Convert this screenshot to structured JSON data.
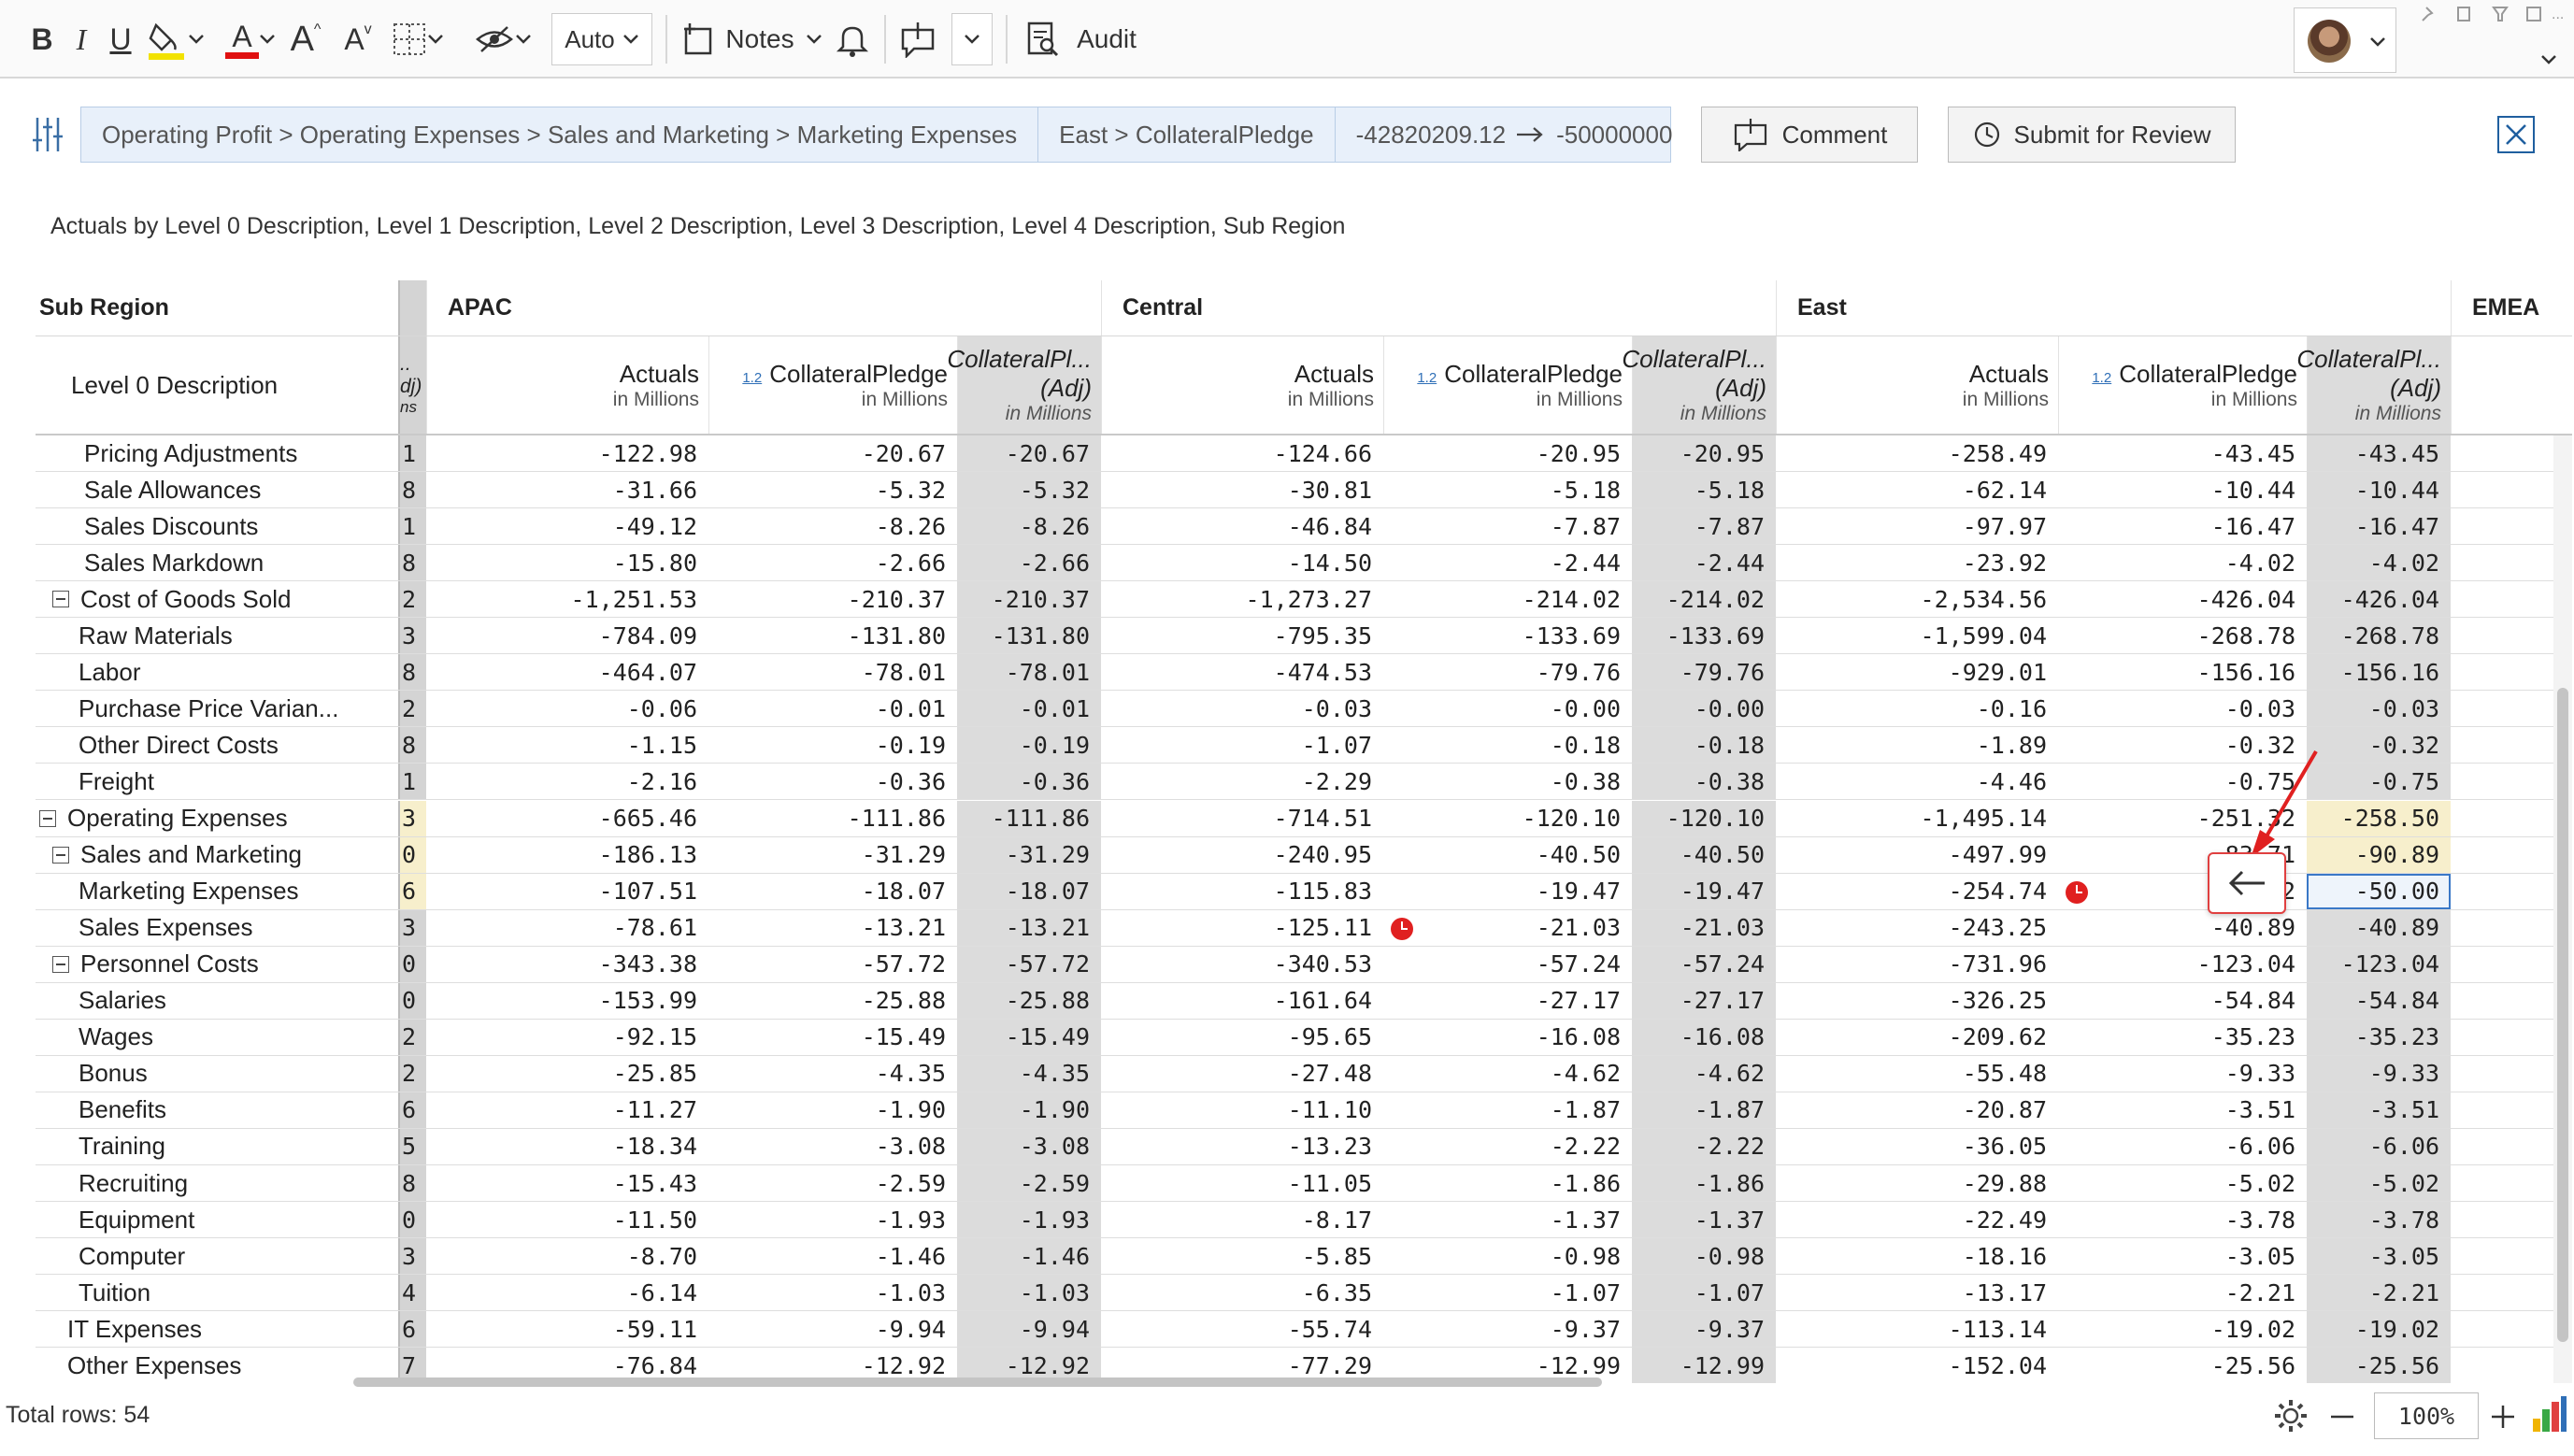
{
  "toolbar": {
    "auto_label": "Auto",
    "notes_label": "Notes",
    "audit_label": "Audit",
    "bold": "B",
    "italic": "I",
    "underline": "U",
    "font_color_letter": "A",
    "grow_letter": "A",
    "shrink_letter": "A"
  },
  "context": {
    "breadcrumb": "Operating Profit > Operating Expenses > Sales and Marketing > Marketing Expenses",
    "cell_path": "East > CollateralPledge",
    "old_value": "-42820209.12",
    "new_value": "-50000000",
    "comment_label": "Comment",
    "submit_label": "Submit for Review"
  },
  "grid_title": "Actuals by Level 0 Description, Level 1 Description, Level 2 Description, Level 3 Description, Level 4 Description, Sub Region",
  "header": {
    "sub_region_label": "Sub Region",
    "level_label": "Level 0 Description",
    "regions": [
      "APAC",
      "Central",
      "East",
      "EMEA"
    ],
    "measures": {
      "actuals": "Actuals",
      "collateral": "CollateralPledge",
      "adj_top": "CollateralPl...",
      "adj_bottom": "(Adj)",
      "unit": "in Millions",
      "badge": "1.2",
      "stub_top": "..",
      "stub_mid": "dj)",
      "stub_unit": "ns"
    }
  },
  "rows": [
    {
      "label": "Pricing Adjustments",
      "indent": 3,
      "bold": false,
      "stub": "1",
      "v": [
        "-122.98",
        "-20.67",
        "-20.67",
        "-124.66",
        "-20.95",
        "-20.95",
        "-258.49",
        "-43.45",
        "-43.45"
      ]
    },
    {
      "label": "Sale Allowances",
      "indent": 3,
      "bold": false,
      "stub": "8",
      "v": [
        "-31.66",
        "-5.32",
        "-5.32",
        "-30.81",
        "-5.18",
        "-5.18",
        "-62.14",
        "-10.44",
        "-10.44"
      ]
    },
    {
      "label": "Sales Discounts",
      "indent": 3,
      "bold": false,
      "stub": "1",
      "v": [
        "-49.12",
        "-8.26",
        "-8.26",
        "-46.84",
        "-7.87",
        "-7.87",
        "-97.97",
        "-16.47",
        "-16.47"
      ]
    },
    {
      "label": "Sales Markdown",
      "indent": 3,
      "bold": false,
      "stub": "8",
      "v": [
        "-15.80",
        "-2.66",
        "-2.66",
        "-14.50",
        "-2.44",
        "-2.44",
        "-23.92",
        "-4.02",
        "-4.02"
      ]
    },
    {
      "label": "Cost of Goods Sold",
      "indent": 2,
      "bold": false,
      "expand": true,
      "stub": "2",
      "v": [
        "-1,251.53",
        "-210.37",
        "-210.37",
        "-1,273.27",
        "-214.02",
        "-214.02",
        "-2,534.56",
        "-426.04",
        "-426.04"
      ]
    },
    {
      "label": "Raw Materials",
      "indent": 3,
      "bold": false,
      "stub": "3",
      "v": [
        "-784.09",
        "-131.80",
        "-131.80",
        "-795.35",
        "-133.69",
        "-133.69",
        "-1,599.04",
        "-268.78",
        "-268.78"
      ]
    },
    {
      "label": "Labor",
      "indent": 3,
      "bold": false,
      "stub": "8",
      "v": [
        "-464.07",
        "-78.01",
        "-78.01",
        "-474.53",
        "-79.76",
        "-79.76",
        "-929.01",
        "-156.16",
        "-156.16"
      ]
    },
    {
      "label": "Purchase Price Varian...",
      "indent": 3,
      "bold": false,
      "stub": "2",
      "v": [
        "-0.06",
        "-0.01",
        "-0.01",
        "-0.03",
        "-0.00",
        "-0.00",
        "-0.16",
        "-0.03",
        "-0.03"
      ]
    },
    {
      "label": "Other Direct Costs",
      "indent": 3,
      "bold": false,
      "stub": "8",
      "v": [
        "-1.15",
        "-0.19",
        "-0.19",
        "-1.07",
        "-0.18",
        "-0.18",
        "-1.89",
        "-0.32",
        "-0.32"
      ]
    },
    {
      "label": "Freight",
      "indent": 3,
      "bold": false,
      "stub": "1",
      "v": [
        "-2.16",
        "-0.36",
        "-0.36",
        "-2.29",
        "-0.38",
        "-0.38",
        "-4.46",
        "-0.75",
        "-0.75"
      ]
    },
    {
      "label": "Operating Expenses",
      "indent": 1,
      "bold": false,
      "expand": true,
      "stub": "3",
      "stub_yellow": true,
      "adj_yellow": true,
      "v": [
        "-665.46",
        "-111.86",
        "-111.86",
        "-714.51",
        "-120.10",
        "-120.10",
        "-1,495.14",
        "-251.32",
        "-258.50"
      ]
    },
    {
      "label": "Sales and Marketing",
      "indent": 2,
      "bold": false,
      "expand": true,
      "stub": "0",
      "stub_yellow": true,
      "adj_yellow": true,
      "v": [
        "-186.13",
        "-31.29",
        "-31.29",
        "-240.95",
        "-40.50",
        "-40.50",
        "-497.99",
        "-83.71",
        "-90.89"
      ]
    },
    {
      "label": "Marketing Expenses",
      "indent": 3,
      "bold": false,
      "stub": "6",
      "stub_yellow": true,
      "selected": true,
      "clock_east": true,
      "v": [
        "-107.51",
        "-18.07",
        "-18.07",
        "-115.83",
        "-19.47",
        "-19.47",
        "-254.74",
        "-42.82",
        "-50.00"
      ]
    },
    {
      "label": "Sales Expenses",
      "indent": 3,
      "bold": false,
      "stub": "3",
      "clock_central": true,
      "v": [
        "-78.61",
        "-13.21",
        "-13.21",
        "-125.11",
        "-21.03",
        "-21.03",
        "-243.25",
        "-40.89",
        "-40.89"
      ]
    },
    {
      "label": "Personnel Costs",
      "indent": 2,
      "bold": false,
      "expand": true,
      "stub": "0",
      "v": [
        "-343.38",
        "-57.72",
        "-57.72",
        "-340.53",
        "-57.24",
        "-57.24",
        "-731.96",
        "-123.04",
        "-123.04"
      ]
    },
    {
      "label": "Salaries",
      "indent": 3,
      "bold": false,
      "stub": "0",
      "v": [
        "-153.99",
        "-25.88",
        "-25.88",
        "-161.64",
        "-27.17",
        "-27.17",
        "-326.25",
        "-54.84",
        "-54.84"
      ]
    },
    {
      "label": "Wages",
      "indent": 3,
      "bold": false,
      "stub": "2",
      "v": [
        "-92.15",
        "-15.49",
        "-15.49",
        "-95.65",
        "-16.08",
        "-16.08",
        "-209.62",
        "-35.23",
        "-35.23"
      ]
    },
    {
      "label": "Bonus",
      "indent": 3,
      "bold": false,
      "stub": "2",
      "v": [
        "-25.85",
        "-4.35",
        "-4.35",
        "-27.48",
        "-4.62",
        "-4.62",
        "-55.48",
        "-9.33",
        "-9.33"
      ]
    },
    {
      "label": "Benefits",
      "indent": 3,
      "bold": false,
      "stub": "6",
      "v": [
        "-11.27",
        "-1.90",
        "-1.90",
        "-11.10",
        "-1.87",
        "-1.87",
        "-20.87",
        "-3.51",
        "-3.51"
      ]
    },
    {
      "label": "Training",
      "indent": 3,
      "bold": false,
      "stub": "5",
      "v": [
        "-18.34",
        "-3.08",
        "-3.08",
        "-13.23",
        "-2.22",
        "-2.22",
        "-36.05",
        "-6.06",
        "-6.06"
      ]
    },
    {
      "label": "Recruiting",
      "indent": 3,
      "bold": false,
      "stub": "8",
      "v": [
        "-15.43",
        "-2.59",
        "-2.59",
        "-11.05",
        "-1.86",
        "-1.86",
        "-29.88",
        "-5.02",
        "-5.02"
      ]
    },
    {
      "label": "Equipment",
      "indent": 3,
      "bold": false,
      "stub": "0",
      "v": [
        "-11.50",
        "-1.93",
        "-1.93",
        "-8.17",
        "-1.37",
        "-1.37",
        "-22.49",
        "-3.78",
        "-3.78"
      ]
    },
    {
      "label": "Computer",
      "indent": 3,
      "bold": false,
      "stub": "3",
      "v": [
        "-8.70",
        "-1.46",
        "-1.46",
        "-5.85",
        "-0.98",
        "-0.98",
        "-18.16",
        "-3.05",
        "-3.05"
      ]
    },
    {
      "label": "Tuition",
      "indent": 3,
      "bold": false,
      "stub": "4",
      "v": [
        "-6.14",
        "-1.03",
        "-1.03",
        "-6.35",
        "-1.07",
        "-1.07",
        "-13.17",
        "-2.21",
        "-2.21"
      ]
    },
    {
      "label": "IT Expenses",
      "indent": 2,
      "bold": false,
      "stub": "6",
      "v": [
        "-59.11",
        "-9.94",
        "-9.94",
        "-55.74",
        "-9.37",
        "-9.37",
        "-113.14",
        "-19.02",
        "-19.02"
      ]
    },
    {
      "label": "Other Expenses",
      "indent": 2,
      "bold": false,
      "stub": "7",
      "v": [
        "-76.84",
        "-12.92",
        "-12.92",
        "-77.29",
        "-12.99",
        "-12.99",
        "-152.04",
        "-25.56",
        "-25.56"
      ]
    }
  ],
  "footer": {
    "total_rows": "Total rows: 54",
    "zoom": "100%"
  },
  "colors": {
    "accent": "#2f6fb7",
    "highlight_yellow": "#f7efcc",
    "adj_gray": "#dcdcdc",
    "alert_red": "#e02020"
  }
}
